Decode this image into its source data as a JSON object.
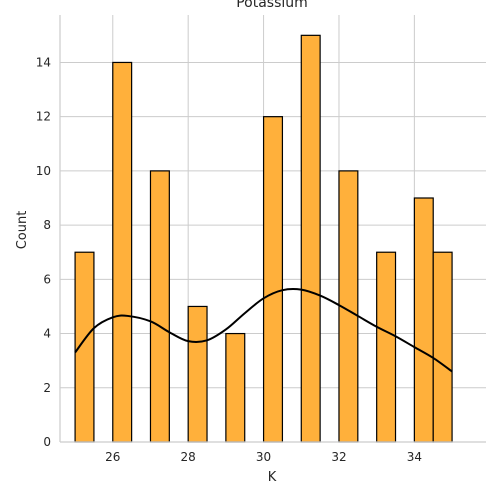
{
  "chart_data": {
    "type": "bar",
    "title": "Potassium",
    "xlabel": "K",
    "ylabel": "Count",
    "xlim": [
      24.6,
      35.9
    ],
    "ylim": [
      0,
      15.75
    ],
    "xticks": [
      "26",
      "28",
      "30",
      "32",
      "34"
    ],
    "yticks": [
      "0",
      "2",
      "4",
      "6",
      "8",
      "10",
      "12",
      "14"
    ],
    "bin_width": 0.5,
    "bars": [
      {
        "x": 25.0,
        "count": 7
      },
      {
        "x": 26.0,
        "count": 14
      },
      {
        "x": 27.0,
        "count": 10
      },
      {
        "x": 28.0,
        "count": 5
      },
      {
        "x": 29.0,
        "count": 4
      },
      {
        "x": 30.0,
        "count": 12
      },
      {
        "x": 31.0,
        "count": 15
      },
      {
        "x": 32.0,
        "count": 10
      },
      {
        "x": 33.0,
        "count": 7
      },
      {
        "x": 34.0,
        "count": 9
      },
      {
        "x": 34.5,
        "count": 7
      }
    ],
    "kde_curve": {
      "x": [
        25.0,
        25.5,
        26.0,
        26.4,
        27.0,
        27.5,
        28.0,
        28.5,
        29.0,
        29.5,
        30.0,
        30.5,
        31.0,
        31.5,
        32.0,
        32.5,
        33.0,
        33.5,
        34.0,
        34.5,
        35.0
      ],
      "y": [
        3.3,
        4.2,
        4.6,
        4.65,
        4.45,
        4.05,
        3.72,
        3.75,
        4.15,
        4.75,
        5.3,
        5.6,
        5.62,
        5.4,
        5.05,
        4.65,
        4.25,
        3.9,
        3.5,
        3.1,
        2.6
      ]
    },
    "grid": true,
    "colors": {
      "bar_fill": "#ffb03b",
      "bar_edge": "#000000",
      "curve": "#000000",
      "grid": "#cccccc",
      "axis": "#cccccc"
    }
  }
}
